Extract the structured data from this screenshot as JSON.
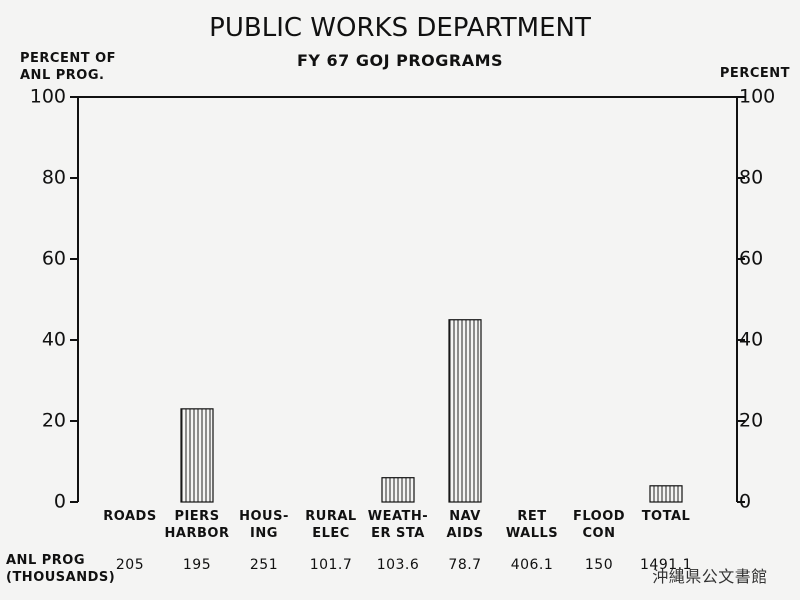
{
  "chart_data": {
    "type": "bar",
    "title": "PUBLIC WORKS DEPARTMENT",
    "subtitle": "FY 67 GOJ PROGRAMS",
    "ylabel": "PERCENT OF\nANL PROG.",
    "y2label": "PERCENT",
    "categories": [
      "ROADS",
      "PIERS\nHARBOR",
      "HOUS-\nING",
      "RURAL\nELEC",
      "WEATH-\nER STA",
      "NAV\nAIDS",
      "RET\nWALLS",
      "FLOOD\nCON",
      "TOTAL"
    ],
    "values": [
      0,
      23,
      0,
      0,
      6,
      45,
      0,
      0,
      4
    ],
    "ylim": [
      0,
      100
    ],
    "yticks": [
      0,
      20,
      40,
      60,
      80,
      100
    ],
    "y2lim": [
      0,
      100
    ],
    "y2ticks": [
      0,
      20,
      40,
      60,
      80,
      100
    ],
    "annual_program": {
      "label": "ANL PROG\n(THOUSANDS)",
      "values": [
        205,
        195,
        251,
        101.7,
        103.6,
        78.7,
        406.1,
        150,
        1491.1
      ]
    },
    "watermark": "沖縄県公文書館"
  }
}
